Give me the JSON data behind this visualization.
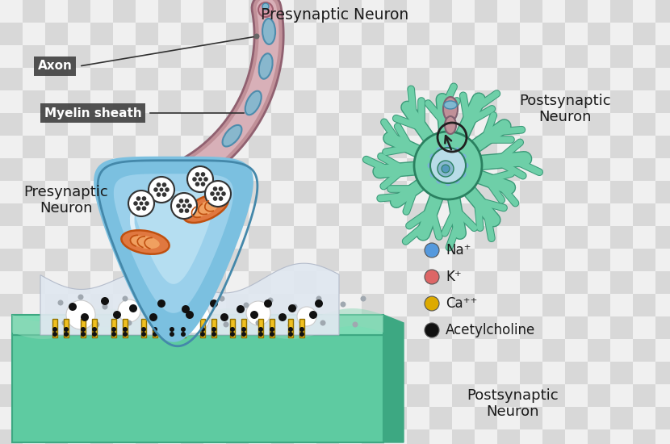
{
  "bg_checker_light": "#f0f0f0",
  "bg_checker_dark": "#d8d8d8",
  "axon_color": "#c09098",
  "axon_light": "#d8b0b8",
  "axon_ring_color": "#80b8d0",
  "terminal_fill_top": "#6aaed6",
  "terminal_fill_bottom": "#c8e4f4",
  "terminal_outline": "#4488aa",
  "postsynaptic_block_front": "#5ecba1",
  "postsynaptic_block_dark": "#3da882",
  "postsynaptic_block_top": "#7ddcb5",
  "neuron_fill": "#6ecfa8",
  "neuron_outline": "#3a9a78",
  "neuron_soma_fill": "#6ecfa8",
  "neuron_soma_outline": "#2a8060",
  "mito_color": "#e07840",
  "mito_edge": "#c05010",
  "vesicle_fill": "#ffffff",
  "vesicle_edge": "#333333",
  "foam_fill": "#e0e8f0",
  "foam_edge": "#b0b8c8",
  "gray_dot": "#a0a8b0",
  "yellow_receptor": "#f0c020",
  "yellow_receptor_edge": "#907000",
  "black_dot": "#111111",
  "label_box_fill": "#404040",
  "label_text": "#ffffff",
  "dark_text": "#1a1a1a",
  "legend_na": "#5599dd",
  "legend_k": "#dd6666",
  "legend_ca": "#ddaa00",
  "legend_ach": "#111111",
  "checker_size": 28,
  "labels": {
    "axon": "Axon",
    "myelin": "Myelin sheath",
    "pre_top": "Presynaptic Neuron",
    "pre_left": "Presynaptic\nNeuron",
    "post_right": "Postsynaptic\nNeuron",
    "post_bottom": "Postsynaptic\nNeuron",
    "na": "Na⁺",
    "k": "K⁺",
    "ca": "Ca⁺⁺",
    "ach": "Acetylcholine"
  }
}
